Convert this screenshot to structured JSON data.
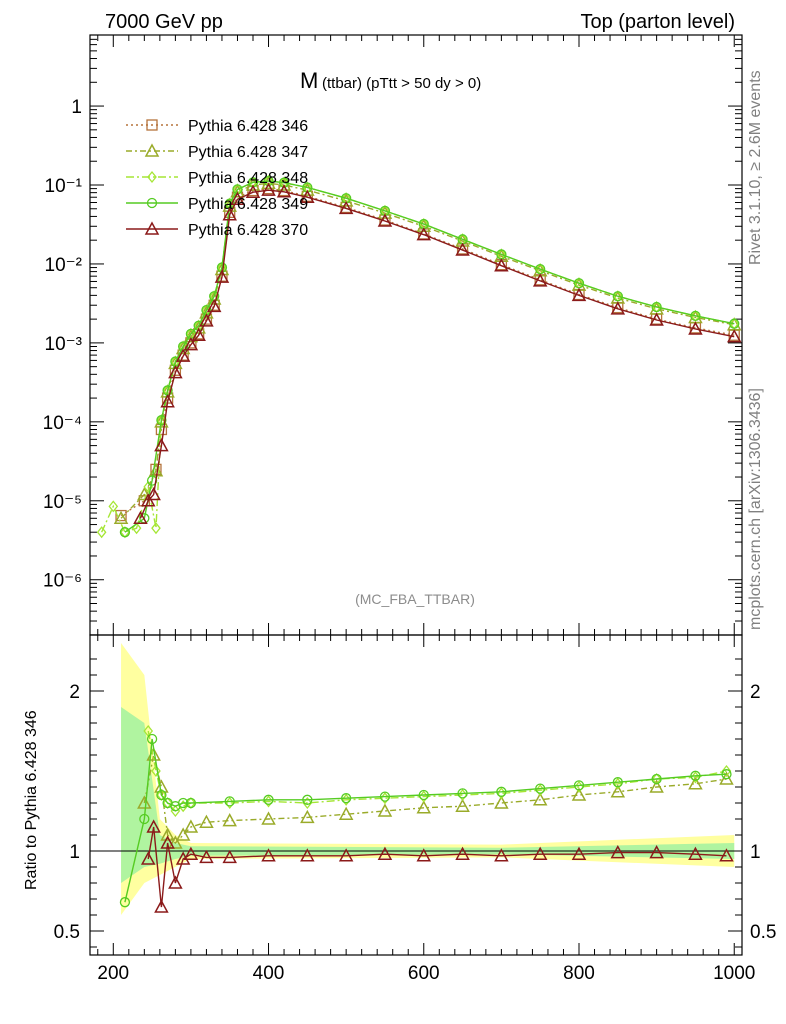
{
  "header": {
    "left": "7000 GeV pp",
    "right": "Top (parton level)"
  },
  "side_labels": {
    "rivet": "Rivet 3.1.10, ≥ 2.6M events",
    "mcplots": "mcplots.cern.ch [arXiv:1306.3436]"
  },
  "chart_data": {
    "type": "line",
    "title_main": "M",
    "title_sub": "(ttbar) (pTtt > 50 dy > 0)",
    "analysis_tag": "(MC_FBA_TTBAR)",
    "xlabel": "",
    "ylabel_top": "",
    "ylabel_ratio": "Ratio to Pythia 6.428 346",
    "xlim": [
      170,
      1010
    ],
    "ylim_top_log10": [
      -6.7,
      0.9
    ],
    "ylim_ratio": [
      0.35,
      2.35
    ],
    "log_y_top": true,
    "x_ticks": [
      200,
      400,
      600,
      800,
      1000
    ],
    "y_ticks_top": [
      {
        "exp": 0,
        "label": "1"
      },
      {
        "exp": -1,
        "label": "10⁻¹"
      },
      {
        "exp": -2,
        "label": "10⁻²"
      },
      {
        "exp": -3,
        "label": "10⁻³"
      },
      {
        "exp": -4,
        "label": "10⁻⁴"
      },
      {
        "exp": -5,
        "label": "10⁻⁵"
      },
      {
        "exp": -6,
        "label": "10⁻⁶"
      }
    ],
    "y_ticks_ratio": [
      {
        "v": 0.5,
        "label": "0.5"
      },
      {
        "v": 1,
        "label": "1"
      },
      {
        "v": 2,
        "label": "2"
      }
    ],
    "legend_position": "top-left",
    "series": [
      {
        "name": "Pythia 6.428 346",
        "color": "#b5733c",
        "marker": "square",
        "dash": "2,3",
        "reference": true,
        "points": [
          [
            210,
            6.5e-06
          ],
          [
            240,
            1e-05
          ],
          [
            255,
            2.5e-05
          ],
          [
            262,
            8e-05
          ],
          [
            270,
            0.0002
          ],
          [
            280,
            0.00045
          ],
          [
            290,
            0.0007
          ],
          [
            300,
            0.001
          ],
          [
            310,
            0.0013
          ],
          [
            320,
            0.002
          ],
          [
            330,
            0.003
          ],
          [
            340,
            0.007
          ],
          [
            350,
            0.045
          ],
          [
            360,
            0.07
          ],
          [
            380,
            0.085
          ],
          [
            400,
            0.09
          ],
          [
            420,
            0.085
          ],
          [
            450,
            0.072
          ],
          [
            500,
            0.052
          ],
          [
            550,
            0.036
          ],
          [
            600,
            0.024
          ],
          [
            650,
            0.0155
          ],
          [
            700,
            0.0098
          ],
          [
            750,
            0.0063
          ],
          [
            800,
            0.0041
          ],
          [
            850,
            0.0028
          ],
          [
            900,
            0.002
          ],
          [
            950,
            0.00155
          ],
          [
            1000,
            0.00125
          ]
        ],
        "ratio": []
      },
      {
        "name": "Pythia 6.428 347",
        "color": "#9aab2a",
        "marker": "triangle-up",
        "dash": "6,3,2,3",
        "reference": false,
        "points": [
          [
            210,
            6e-06
          ],
          [
            240,
            1.2e-05
          ],
          [
            255,
            2.4e-05
          ],
          [
            262,
            0.0001
          ],
          [
            270,
            0.00024
          ],
          [
            280,
            0.00055
          ],
          [
            290,
            0.00085
          ],
          [
            300,
            0.0012
          ],
          [
            310,
            0.00155
          ],
          [
            320,
            0.0024
          ],
          [
            330,
            0.0036
          ],
          [
            340,
            0.0085
          ],
          [
            350,
            0.054
          ],
          [
            360,
            0.082
          ],
          [
            380,
            0.1
          ],
          [
            400,
            0.105
          ],
          [
            420,
            0.1
          ],
          [
            450,
            0.086
          ],
          [
            500,
            0.063
          ],
          [
            550,
            0.044
          ],
          [
            600,
            0.03
          ],
          [
            650,
            0.0195
          ],
          [
            700,
            0.0125
          ],
          [
            750,
            0.0082
          ],
          [
            800,
            0.0054
          ],
          [
            850,
            0.0037
          ],
          [
            900,
            0.0027
          ],
          [
            950,
            0.0021
          ],
          [
            1000,
            0.0017
          ]
        ],
        "ratio": [
          [
            240,
            1.3
          ],
          [
            252,
            1.6
          ],
          [
            262,
            1.4
          ],
          [
            270,
            1.1
          ],
          [
            280,
            1.05
          ],
          [
            290,
            1.1
          ],
          [
            300,
            1.15
          ],
          [
            320,
            1.18
          ],
          [
            350,
            1.19
          ],
          [
            400,
            1.2
          ],
          [
            450,
            1.21
          ],
          [
            500,
            1.23
          ],
          [
            550,
            1.25
          ],
          [
            600,
            1.27
          ],
          [
            650,
            1.28
          ],
          [
            700,
            1.3
          ],
          [
            750,
            1.32
          ],
          [
            800,
            1.35
          ],
          [
            850,
            1.37
          ],
          [
            900,
            1.4
          ],
          [
            950,
            1.42
          ],
          [
            990,
            1.45
          ]
        ]
      },
      {
        "name": "Pythia 6.428 348",
        "color": "#a5e635",
        "marker": "diamond",
        "dash": "8,3,2,3",
        "reference": false,
        "points": [
          [
            185,
            4e-06
          ],
          [
            200,
            8.5e-06
          ],
          [
            215,
            4e-06
          ],
          [
            230,
            4.5e-06
          ],
          [
            245,
            1.5e-05
          ],
          [
            255,
            4.5e-06
          ],
          [
            262,
            0.000105
          ],
          [
            270,
            0.00025
          ],
          [
            280,
            0.00058
          ],
          [
            290,
            0.0009
          ],
          [
            300,
            0.0013
          ],
          [
            310,
            0.00165
          ],
          [
            320,
            0.0026
          ],
          [
            330,
            0.0039
          ],
          [
            340,
            0.009
          ],
          [
            350,
            0.058
          ],
          [
            360,
            0.088
          ],
          [
            380,
            0.108
          ],
          [
            400,
            0.113
          ],
          [
            420,
            0.107
          ],
          [
            450,
            0.093
          ],
          [
            500,
            0.068
          ],
          [
            550,
            0.047
          ],
          [
            600,
            0.032
          ],
          [
            650,
            0.0205
          ],
          [
            700,
            0.0132
          ],
          [
            750,
            0.0086
          ],
          [
            800,
            0.0057
          ],
          [
            850,
            0.0039
          ],
          [
            900,
            0.00285
          ],
          [
            950,
            0.0022
          ],
          [
            1000,
            0.00175
          ]
        ],
        "ratio": [
          [
            245,
            1.75
          ],
          [
            255,
            1.5
          ],
          [
            262,
            1.35
          ],
          [
            270,
            1.3
          ],
          [
            280,
            1.25
          ],
          [
            290,
            1.28
          ],
          [
            300,
            1.3
          ],
          [
            350,
            1.3
          ],
          [
            400,
            1.31
          ],
          [
            450,
            1.3
          ],
          [
            500,
            1.32
          ],
          [
            550,
            1.33
          ],
          [
            600,
            1.34
          ],
          [
            650,
            1.35
          ],
          [
            700,
            1.36
          ],
          [
            750,
            1.38
          ],
          [
            800,
            1.4
          ],
          [
            850,
            1.42
          ],
          [
            900,
            1.45
          ],
          [
            950,
            1.46
          ],
          [
            990,
            1.5
          ]
        ]
      },
      {
        "name": "Pythia 6.428 349",
        "color": "#55cc22",
        "marker": "circle-cross",
        "dash": "",
        "reference": false,
        "points": [
          [
            215,
            4e-06
          ],
          [
            240,
            6e-06
          ],
          [
            250,
            1.8e-05
          ],
          [
            262,
            0.000105
          ],
          [
            270,
            0.00025
          ],
          [
            280,
            0.00058
          ],
          [
            290,
            0.0009
          ],
          [
            300,
            0.0013
          ],
          [
            310,
            0.00165
          ],
          [
            320,
            0.0026
          ],
          [
            330,
            0.0039
          ],
          [
            340,
            0.009
          ],
          [
            350,
            0.058
          ],
          [
            360,
            0.088
          ],
          [
            380,
            0.108
          ],
          [
            400,
            0.112
          ],
          [
            420,
            0.107
          ],
          [
            450,
            0.093
          ],
          [
            500,
            0.068
          ],
          [
            550,
            0.047
          ],
          [
            600,
            0.032
          ],
          [
            650,
            0.0205
          ],
          [
            700,
            0.0132
          ],
          [
            750,
            0.0086
          ],
          [
            800,
            0.0057
          ],
          [
            850,
            0.0039
          ],
          [
            900,
            0.00285
          ],
          [
            950,
            0.0022
          ],
          [
            1000,
            0.00175
          ]
        ],
        "ratio": [
          [
            215,
            0.68
          ],
          [
            240,
            1.2
          ],
          [
            250,
            1.7
          ],
          [
            262,
            1.35
          ],
          [
            270,
            1.3
          ],
          [
            280,
            1.28
          ],
          [
            290,
            1.3
          ],
          [
            300,
            1.3
          ],
          [
            350,
            1.31
          ],
          [
            400,
            1.32
          ],
          [
            450,
            1.32
          ],
          [
            500,
            1.33
          ],
          [
            550,
            1.34
          ],
          [
            600,
            1.35
          ],
          [
            650,
            1.36
          ],
          [
            700,
            1.37
          ],
          [
            750,
            1.39
          ],
          [
            800,
            1.41
          ],
          [
            850,
            1.43
          ],
          [
            900,
            1.45
          ],
          [
            950,
            1.47
          ],
          [
            990,
            1.48
          ]
        ]
      },
      {
        "name": "Pythia 6.428 370",
        "color": "#8b1a1a",
        "marker": "triangle-open",
        "dash": "",
        "reference": false,
        "points": [
          [
            235,
            6e-06
          ],
          [
            245,
            1e-05
          ],
          [
            252,
            1.2e-05
          ],
          [
            262,
            5e-05
          ],
          [
            270,
            0.00018
          ],
          [
            280,
            0.00042
          ],
          [
            290,
            0.00068
          ],
          [
            300,
            0.00095
          ],
          [
            310,
            0.00125
          ],
          [
            320,
            0.0019
          ],
          [
            330,
            0.0029
          ],
          [
            340,
            0.0068
          ],
          [
            350,
            0.042
          ],
          [
            360,
            0.066
          ],
          [
            380,
            0.081
          ],
          [
            400,
            0.086
          ],
          [
            420,
            0.082
          ],
          [
            450,
            0.07
          ],
          [
            500,
            0.0505
          ],
          [
            550,
            0.035
          ],
          [
            600,
            0.0235
          ],
          [
            650,
            0.015
          ],
          [
            700,
            0.0095
          ],
          [
            750,
            0.0061
          ],
          [
            800,
            0.004
          ],
          [
            850,
            0.0027
          ],
          [
            900,
            0.00195
          ],
          [
            950,
            0.0015
          ],
          [
            1000,
            0.0012
          ]
        ],
        "ratio": [
          [
            245,
            0.95
          ],
          [
            252,
            1.15
          ],
          [
            262,
            0.65
          ],
          [
            270,
            1.05
          ],
          [
            280,
            0.8
          ],
          [
            290,
            0.95
          ],
          [
            300,
            0.98
          ],
          [
            320,
            0.96
          ],
          [
            350,
            0.96
          ],
          [
            400,
            0.97
          ],
          [
            450,
            0.97
          ],
          [
            500,
            0.97
          ],
          [
            550,
            0.98
          ],
          [
            600,
            0.97
          ],
          [
            650,
            0.98
          ],
          [
            700,
            0.97
          ],
          [
            750,
            0.98
          ],
          [
            800,
            0.98
          ],
          [
            850,
            0.99
          ],
          [
            900,
            0.99
          ],
          [
            950,
            0.98
          ],
          [
            990,
            0.97
          ]
        ]
      }
    ],
    "ratio_bands": {
      "outer_color": "#ffff88",
      "inner_color": "#8ff0a0",
      "points": [
        [
          210,
          0.6,
          2.3,
          0.8,
          1.9
        ],
        [
          240,
          0.8,
          2.1,
          0.9,
          1.8
        ],
        [
          260,
          0.85,
          1.2,
          0.92,
          1.1
        ],
        [
          280,
          0.9,
          1.1,
          0.95,
          1.05
        ],
        [
          300,
          0.95,
          1.05,
          0.97,
          1.03
        ],
        [
          700,
          0.96,
          1.04,
          0.98,
          1.02
        ],
        [
          1000,
          0.9,
          1.1,
          0.95,
          1.05
        ]
      ]
    }
  }
}
